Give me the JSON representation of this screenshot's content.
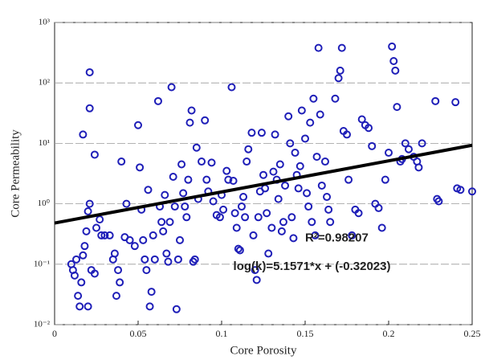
{
  "chart_data": {
    "type": "scatter",
    "ylog": true,
    "grid": true,
    "color": "#1f1fb8",
    "x_label": "Core Porosity",
    "y_label": "Core Permeability",
    "xlim": [
      0,
      0.25
    ],
    "xticks": [
      0,
      0.05,
      0.1,
      0.15,
      0.2,
      0.25
    ],
    "ylim": [
      0.01,
      1000
    ],
    "yticks": [
      {
        "value": 0.01,
        "label": "10⁻²"
      },
      {
        "value": 0.1,
        "label": "10⁻¹"
      },
      {
        "value": 1,
        "label": "10⁰"
      },
      {
        "value": 10,
        "label": "10¹"
      },
      {
        "value": 100,
        "label": "10²"
      },
      {
        "value": 1000,
        "label": "10³"
      }
    ],
    "x": [
      0.01,
      0.011,
      0.012,
      0.013,
      0.014,
      0.015,
      0.016,
      0.017,
      0.018,
      0.019,
      0.02,
      0.021,
      0.02,
      0.021,
      0.021,
      0.017,
      0.024,
      0.025,
      0.027,
      0.028,
      0.022,
      0.024,
      0.03,
      0.033,
      0.035,
      0.036,
      0.037,
      0.038,
      0.039,
      0.04,
      0.042,
      0.043,
      0.045,
      0.048,
      0.05,
      0.051,
      0.052,
      0.053,
      0.054,
      0.055,
      0.056,
      0.057,
      0.058,
      0.059,
      0.06,
      0.062,
      0.063,
      0.064,
      0.065,
      0.066,
      0.067,
      0.068,
      0.069,
      0.07,
      0.071,
      0.072,
      0.073,
      0.074,
      0.075,
      0.076,
      0.077,
      0.078,
      0.079,
      0.08,
      0.081,
      0.082,
      0.083,
      0.084,
      0.085,
      0.086,
      0.088,
      0.09,
      0.091,
      0.092,
      0.094,
      0.095,
      0.097,
      0.099,
      0.1,
      0.101,
      0.103,
      0.104,
      0.106,
      0.107,
      0.108,
      0.109,
      0.11,
      0.111,
      0.112,
      0.113,
      0.114,
      0.115,
      0.116,
      0.118,
      0.119,
      0.12,
      0.121,
      0.122,
      0.123,
      0.124,
      0.125,
      0.126,
      0.127,
      0.128,
      0.13,
      0.131,
      0.132,
      0.133,
      0.134,
      0.135,
      0.136,
      0.137,
      0.138,
      0.14,
      0.141,
      0.142,
      0.143,
      0.144,
      0.145,
      0.146,
      0.147,
      0.148,
      0.15,
      0.151,
      0.152,
      0.153,
      0.154,
      0.155,
      0.156,
      0.157,
      0.158,
      0.159,
      0.16,
      0.162,
      0.163,
      0.164,
      0.165,
      0.168,
      0.17,
      0.171,
      0.172,
      0.173,
      0.175,
      0.176,
      0.178,
      0.18,
      0.182,
      0.184,
      0.186,
      0.188,
      0.19,
      0.192,
      0.194,
      0.196,
      0.198,
      0.2,
      0.202,
      0.203,
      0.204,
      0.205,
      0.207,
      0.208,
      0.21,
      0.212,
      0.215,
      0.217,
      0.218,
      0.22,
      0.228,
      0.229,
      0.23,
      0.24,
      0.243,
      0.25,
      0.241
    ],
    "values": [
      0.1,
      0.08,
      0.065,
      0.12,
      0.03,
      0.02,
      0.05,
      0.14,
      0.2,
      0.35,
      0.75,
      1.0,
      0.02,
      150,
      38,
      14,
      6.5,
      0.4,
      0.55,
      0.3,
      0.08,
      0.07,
      0.3,
      0.3,
      0.12,
      0.15,
      0.03,
      0.08,
      0.05,
      5,
      0.28,
      1.0,
      0.25,
      0.2,
      20,
      4,
      0.8,
      0.25,
      0.12,
      0.08,
      1.7,
      0.02,
      0.035,
      0.3,
      0.12,
      50,
      0.9,
      0.5,
      0.35,
      1.4,
      0.15,
      0.11,
      0.5,
      85,
      2.8,
      0.9,
      0.018,
      0.12,
      0.25,
      4.5,
      1.5,
      0.9,
      0.6,
      2.5,
      22,
      35,
      0.11,
      0.12,
      8.5,
      1.2,
      5,
      24,
      2.5,
      1.6,
      4.8,
      1.1,
      0.65,
      0.6,
      1.4,
      0.8,
      3.5,
      2.5,
      85,
      2.4,
      0.7,
      0.4,
      0.18,
      0.17,
      0.9,
      1.3,
      0.6,
      5,
      8,
      15,
      0.3,
      0.08,
      0.055,
      0.6,
      1.6,
      15,
      3.0,
      1.8,
      0.7,
      0.15,
      0.4,
      3.4,
      14,
      2.5,
      1.2,
      4.5,
      0.35,
      0.5,
      2.0,
      28,
      10,
      0.6,
      0.27,
      7,
      3,
      1.8,
      4.2,
      35,
      12,
      1.5,
      0.9,
      22,
      0.5,
      55,
      0.3,
      6,
      380,
      30,
      2,
      5,
      1.3,
      0.8,
      0.5,
      55,
      120,
      160,
      380,
      16,
      14,
      2.5,
      0.3,
      0.8,
      0.7,
      25,
      20,
      18,
      9,
      1,
      0.85,
      0.4,
      2.5,
      7,
      400,
      230,
      160,
      40,
      5,
      5.5,
      10,
      8,
      6,
      5,
      4,
      10,
      50,
      1.2,
      1.1,
      48,
      1.7,
      1.6,
      1.8
    ],
    "trend_line": {
      "color": "#000000",
      "x": [
        0,
        0.25
      ],
      "values": [
        0.48,
        9.3
      ]
    },
    "annotations": [
      {
        "text": "R²=0.98207",
        "color": "#33dd33",
        "x": 0.15,
        "y": 0.27
      },
      {
        "text": "log(k)=5.1571*x + (-0.32023)",
        "color": "#cc2222",
        "x": 0.107,
        "y": 0.09
      }
    ]
  }
}
